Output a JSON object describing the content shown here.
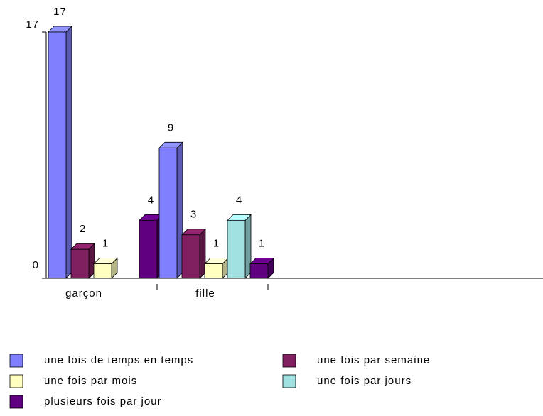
{
  "chart_data": {
    "type": "bar3d",
    "categories": [
      "garçon",
      "fille"
    ],
    "series": [
      {
        "name": "une fois de temps en temps",
        "color": "#8080ff",
        "values": [
          17,
          9
        ]
      },
      {
        "name": "une fois par semaine",
        "color": "#802060",
        "values": [
          2,
          3
        ]
      },
      {
        "name": "une fois par mois",
        "color": "#ffffc0",
        "values": [
          1,
          1
        ]
      },
      {
        "name": "une fois par jours",
        "color": "#a0e0e0",
        "values": [
          null,
          4
        ]
      },
      {
        "name": "plusieurs fois par jour",
        "color": "#600080",
        "values": [
          4,
          1
        ]
      }
    ],
    "ylim": [
      0,
      17
    ],
    "yticks": [
      0,
      17
    ]
  }
}
